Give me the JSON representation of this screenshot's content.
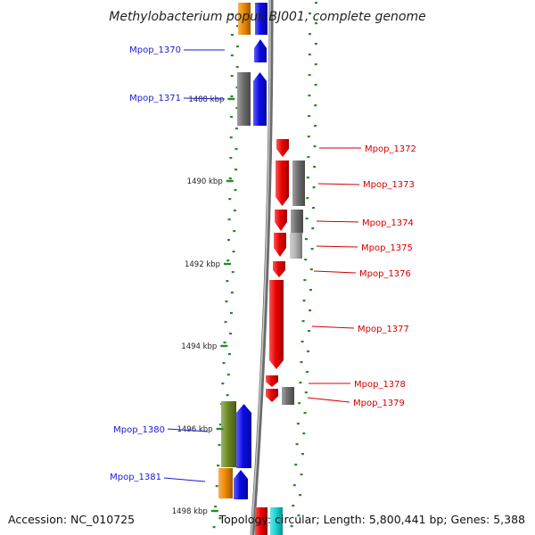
{
  "title": "Methylobacterium populi BJ001, complete genome",
  "footer": {
    "accession": "Accession: NC_010725",
    "topology": "Topology: circular; Length: 5,800,441 bp; Genes: 5,388"
  },
  "colors": {
    "left_label": "#1a1ad6",
    "right_label": "#d40000",
    "scale_tick": "#2a8a2a",
    "backbone": "#888888",
    "gene_blue": "#0b0bea",
    "gene_red": "#f00000",
    "gene_grey": "#6e6e6e",
    "gene_light_grey": "#b4b4b4",
    "gene_orange": "#f08a00",
    "gene_olive": "#6b8a22",
    "gene_cyan": "#16d6d6"
  },
  "scale": {
    "unit": "kbp",
    "labels": [
      "1488 kbp",
      "1490 kbp",
      "1492 kbp",
      "1494 kbp",
      "1496 kbp",
      "1498 kbp"
    ]
  },
  "genes": [
    {
      "id": "Mpop_1370",
      "strand": "left",
      "color": "gene_blue"
    },
    {
      "id": "Mpop_1371",
      "strand": "left",
      "color": "gene_blue"
    },
    {
      "id": "Mpop_1372",
      "strand": "right",
      "color": "gene_red"
    },
    {
      "id": "Mpop_1373",
      "strand": "right",
      "color": "gene_red"
    },
    {
      "id": "Mpop_1374",
      "strand": "right",
      "color": "gene_red"
    },
    {
      "id": "Mpop_1375",
      "strand": "right",
      "color": "gene_red"
    },
    {
      "id": "Mpop_1376",
      "strand": "right",
      "color": "gene_red"
    },
    {
      "id": "Mpop_1377",
      "strand": "right",
      "color": "gene_red"
    },
    {
      "id": "Mpop_1378",
      "strand": "right",
      "color": "gene_red"
    },
    {
      "id": "Mpop_1379",
      "strand": "right",
      "color": "gene_grey"
    },
    {
      "id": "Mpop_1380",
      "strand": "left",
      "color": "gene_blue"
    },
    {
      "id": "Mpop_1381",
      "strand": "left",
      "color": "gene_blue"
    }
  ]
}
